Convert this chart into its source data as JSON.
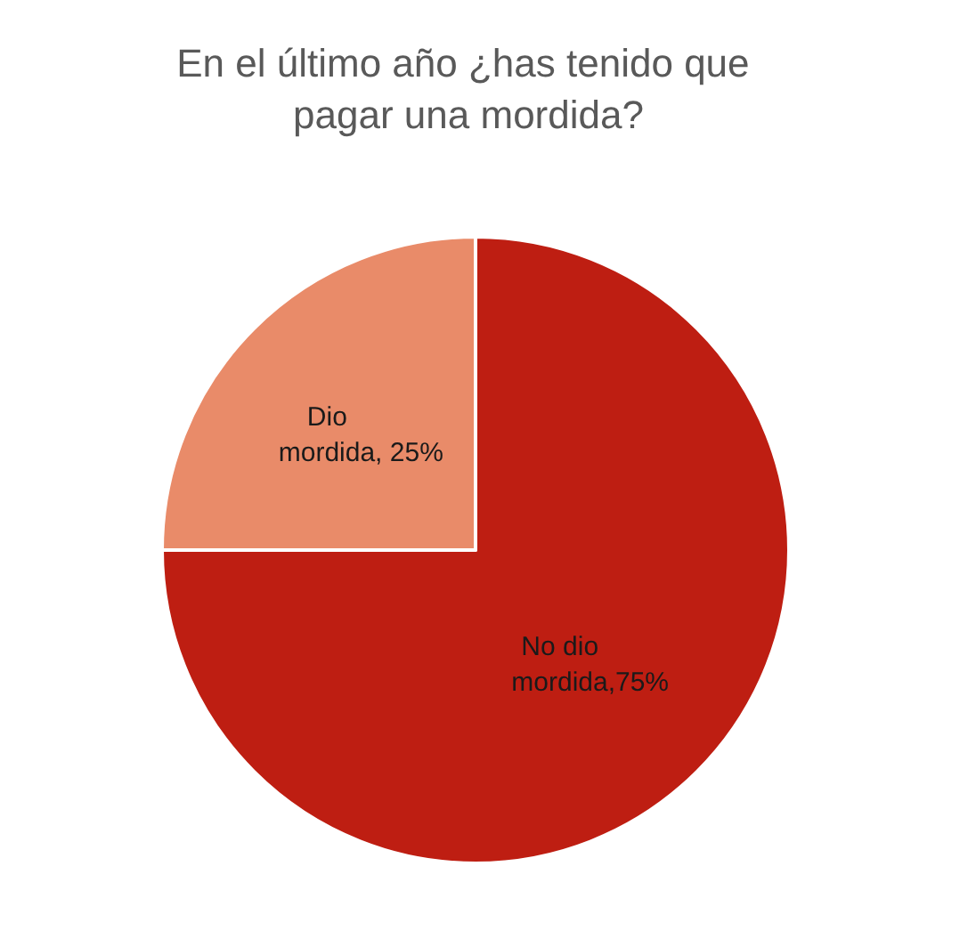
{
  "chart_data": {
    "type": "pie",
    "title": "En el último año ¿has tenido que pagar una mordida?",
    "categories": [
      "No dio mordida",
      "Dio mordida"
    ],
    "values": [
      75,
      25
    ],
    "colors": [
      "#be1e12",
      "#e98b69"
    ],
    "value_labels": [
      ",75%",
      ", 25%"
    ]
  }
}
